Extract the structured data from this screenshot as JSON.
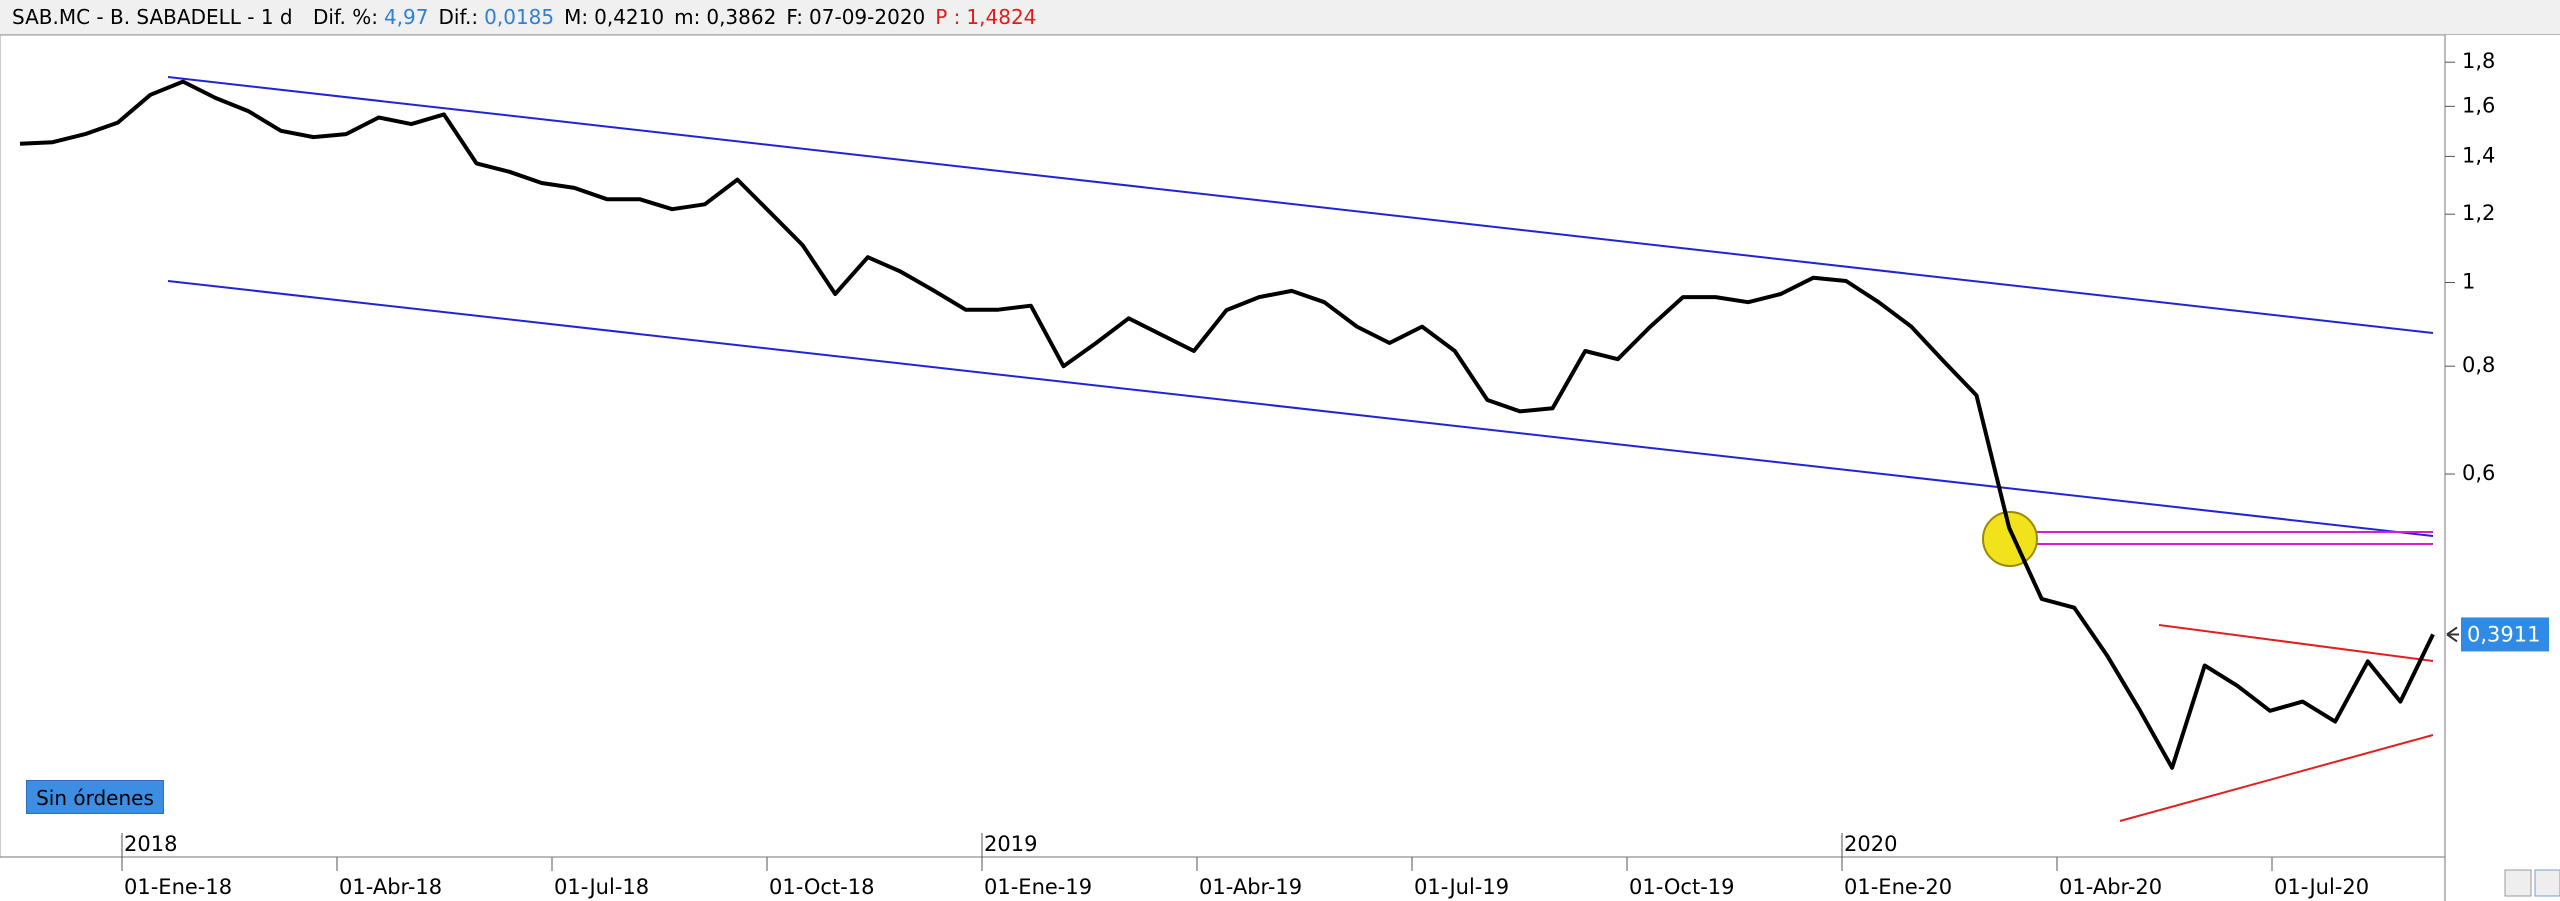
{
  "header": {
    "symbol": "SAB.MC - B. SABADELL -  1 d",
    "fields": [
      {
        "label": "Dif. %:",
        "value": "4,97",
        "color": "#2f7fd6"
      },
      {
        "label": "Dif.:",
        "value": "0,0185",
        "color": "#2f7fd6"
      },
      {
        "label": "M:",
        "value": "0,4210",
        "color": "#000000"
      },
      {
        "label": "m:",
        "value": "0,3862",
        "color": "#000000"
      },
      {
        "label": "F:",
        "value": "07-09-2020",
        "color": "#000000"
      },
      {
        "label": "P :",
        "value": "1,4824",
        "color": "#e01b1b"
      }
    ]
  },
  "button": "Sin órdenes",
  "chart_data": {
    "type": "line",
    "log_scale": true,
    "grid": false,
    "series": [
      {
        "color": "#000000",
        "values": [
          1.448,
          1.454,
          1.486,
          1.532,
          1.65,
          1.709,
          1.636,
          1.58,
          1.499,
          1.474,
          1.486,
          1.553,
          1.526,
          1.566,
          1.374,
          1.344,
          1.304,
          1.287,
          1.249,
          1.249,
          1.216,
          1.232,
          1.316,
          1.206,
          1.105,
          0.97,
          1.07,
          1.03,
          0.98,
          0.93,
          0.93,
          0.94,
          0.8,
          0.851,
          0.909,
          0.87,
          0.833,
          0.929,
          0.962,
          0.978,
          0.949,
          0.889,
          0.851,
          0.889,
          0.833,
          0.731,
          0.709,
          0.715,
          0.833,
          0.815,
          0.889,
          0.962,
          0.962,
          0.949,
          0.97,
          1.013,
          1.004,
          0.949,
          0.889,
          0.81,
          0.74,
          0.52,
          0.43,
          0.42,
          0.37,
          0.32,
          0.274,
          0.36,
          0.341,
          0.319,
          0.327,
          0.31,
          0.364,
          0.327,
          0.3911
        ]
      }
    ],
    "current_price": {
      "value": 0.3911,
      "label": "0,3911"
    },
    "ylim": [
      0.216,
      1.92
    ],
    "yticks": [
      {
        "value": 1.8,
        "label": "1,8"
      },
      {
        "value": 1.6,
        "label": "1,6"
      },
      {
        "value": 1.4,
        "label": "1,4"
      },
      {
        "value": 1.2,
        "label": "1,2"
      },
      1,
      {
        "value": 0.8,
        "label": "0,8"
      },
      {
        "value": 0.6,
        "label": "0,6"
      }
    ],
    "xticks": [
      "01-Ene-18",
      "01-Abr-18",
      "01-Jul-18",
      "01-Oct-18",
      "01-Ene-19",
      "01-Abr-19",
      "01-Jul-19",
      "01-Oct-19",
      "01-Ene-20",
      "01-Abr-20",
      "01-Jul-20"
    ],
    "years": [
      "2018",
      "2019",
      "2020"
    ]
  }
}
